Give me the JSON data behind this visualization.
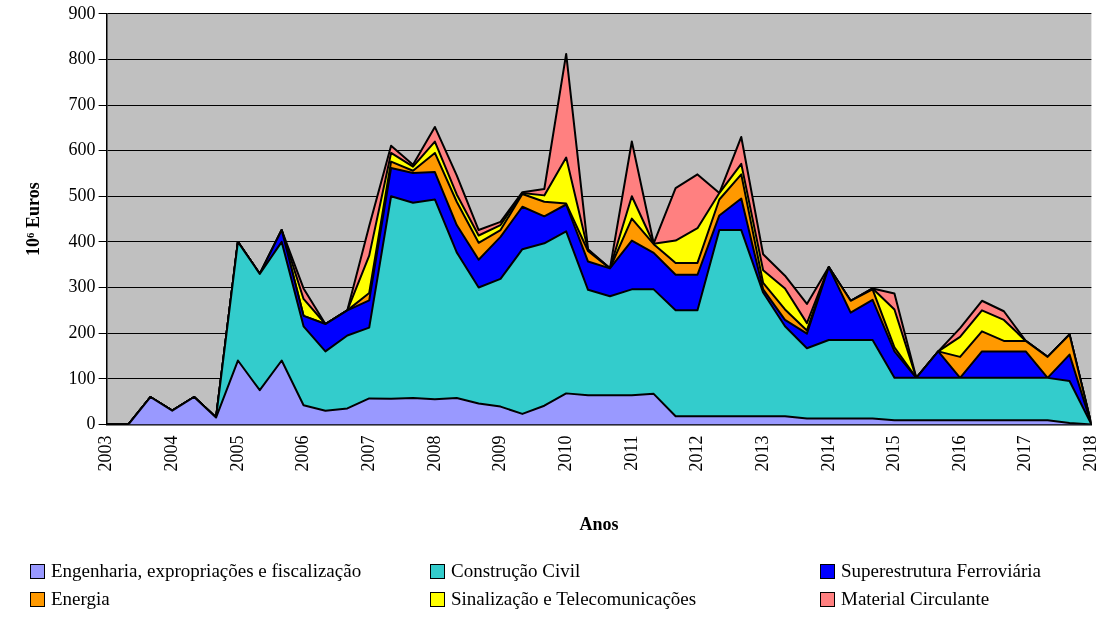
{
  "chart_data": {
    "type": "area",
    "stacked": true,
    "xlabel": "Anos",
    "ylabel": "10⁶ Euros",
    "x": [
      2003,
      2003.333,
      2003.667,
      2004,
      2004.333,
      2004.667,
      2005,
      2005.333,
      2005.667,
      2006,
      2006.333,
      2006.667,
      2007,
      2007.333,
      2007.667,
      2008,
      2008.333,
      2008.667,
      2009,
      2009.333,
      2009.667,
      2010,
      2010.333,
      2010.667,
      2011,
      2011.333,
      2011.667,
      2012,
      2012.333,
      2012.667,
      2013,
      2013.333,
      2013.667,
      2014,
      2014.333,
      2014.667,
      2015,
      2015.333,
      2015.667,
      2016,
      2016.333,
      2016.667,
      2017,
      2017.333,
      2017.667,
      2018
    ],
    "xlim": [
      2003,
      2018
    ],
    "xticks": [
      2003,
      2004,
      2005,
      2006,
      2007,
      2008,
      2009,
      2010,
      2011,
      2012,
      2013,
      2014,
      2015,
      2016,
      2017,
      2018
    ],
    "ylim": [
      0,
      900
    ],
    "yticks": [
      0,
      100,
      200,
      300,
      400,
      500,
      600,
      700,
      800,
      900
    ],
    "grid": "y",
    "legend": "bottom",
    "marker": "none",
    "series": [
      {
        "name": "Engenharia, expropriações e fiscalização",
        "color": "#9999ff",
        "values": [
          0,
          0,
          60,
          30,
          60,
          15,
          140,
          75,
          140,
          42,
          30,
          35,
          57,
          56,
          58,
          55,
          58,
          46,
          39,
          23,
          41,
          68,
          64,
          64,
          64,
          67,
          18,
          18,
          18,
          18,
          18,
          18,
          13,
          13,
          13,
          13,
          9,
          9,
          9,
          9,
          9,
          9,
          9,
          9,
          3,
          0
        ]
      },
      {
        "name": "Construção Civil",
        "color": "#33cccc",
        "values": [
          0,
          0,
          0,
          0,
          0,
          0,
          260,
          255,
          260,
          173,
          130,
          160,
          155,
          444,
          428,
          438,
          319,
          254,
          280,
          361,
          356,
          355,
          231,
          217,
          232,
          229,
          232,
          232,
          408,
          408,
          271,
          197,
          154,
          172,
          172,
          172,
          93,
          93,
          93,
          93,
          93,
          93,
          93,
          93,
          92,
          0
        ]
      },
      {
        "name": "Superestrutura Ferroviária",
        "color": "#0000ff",
        "values": [
          0,
          0,
          0,
          0,
          0,
          0,
          0,
          0,
          26,
          23,
          60,
          55,
          60,
          62,
          65,
          60,
          60,
          61,
          92,
          93,
          59,
          59,
          62,
          61,
          107,
          80,
          78,
          78,
          32,
          69,
          7,
          14,
          32,
          160,
          60,
          88,
          58,
          0,
          58,
          0,
          58,
          58,
          58,
          0,
          58,
          0
        ]
      },
      {
        "name": "Energia",
        "color": "#ff9900",
        "values": [
          0,
          0,
          0,
          0,
          0,
          0,
          0,
          0,
          0,
          0,
          0,
          0,
          16,
          14,
          5,
          42,
          51,
          37,
          15,
          28,
          32,
          2,
          23,
          0,
          48,
          19,
          26,
          26,
          35,
          53,
          14,
          23,
          7,
          0,
          26,
          23,
          9,
          0,
          0,
          46,
          44,
          23,
          23,
          46,
          44,
          0
        ]
      },
      {
        "name": "Sinalização e Telecomunicações",
        "color": "#ffff00",
        "values": [
          0,
          0,
          0,
          0,
          0,
          0,
          0,
          0,
          0,
          37,
          0,
          0,
          82,
          19,
          9,
          25,
          16,
          16,
          11,
          2,
          14,
          101,
          2,
          0,
          49,
          1,
          49,
          76,
          14,
          23,
          28,
          46,
          16,
          0,
          0,
          2,
          83,
          0,
          0,
          44,
          46,
          46,
          0,
          0,
          0,
          0
        ]
      },
      {
        "name": "Material Circulante",
        "color": "#ff8080",
        "values": [
          0,
          0,
          0,
          0,
          0,
          0,
          0,
          0,
          0,
          23,
          0,
          0,
          65,
          16,
          4,
          32,
          42,
          12,
          7,
          2,
          14,
          227,
          2,
          0,
          120,
          1,
          115,
          118,
          0,
          59,
          35,
          28,
          42,
          0,
          0,
          0,
          35,
          0,
          0,
          19,
          21,
          19,
          0,
          0,
          0,
          0
        ]
      }
    ]
  }
}
